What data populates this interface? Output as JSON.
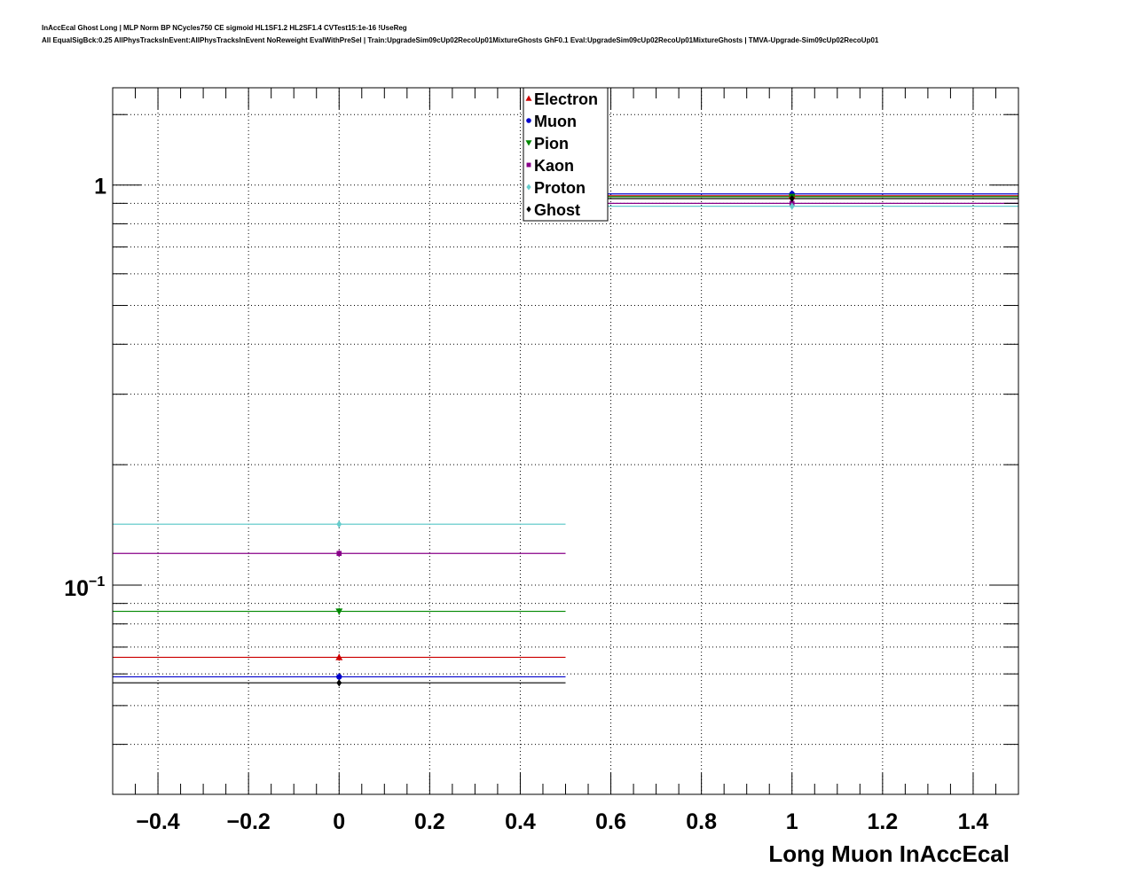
{
  "header": {
    "title": "InAccEcal Ghost Long | MLP Norm BP NCycles750 CE sigmoid HL1SF1.2 HL2SF1.4 CVTest15:1e-16 !UseReg",
    "subtitle": "All EqualSigBck:0.25 AllPhysTracksInEvent:AllPhysTracksInEvent NoReweight EvalWithPreSel | Train:UpgradeSim09cUp02RecoUp01MixtureGhosts GhF0.1 Eval:UpgradeSim09cUp02RecoUp01MixtureGhosts | TMVA-Upgrade-Sim09cUp02RecoUp01"
  },
  "chart_data": {
    "type": "scatter",
    "title": "",
    "xlabel": "Long Muon InAccEcal",
    "ylabel": "",
    "xlim": [
      -0.5,
      1.5
    ],
    "ylim": [
      0.03,
      1.75
    ],
    "yscale": "log",
    "grid": true,
    "legend_position": "top-center",
    "x_ticks": [
      {
        "value": -0.4,
        "label": "−0.4"
      },
      {
        "value": -0.2,
        "label": "−0.2"
      },
      {
        "value": 0,
        "label": "0"
      },
      {
        "value": 0.2,
        "label": "0.2"
      },
      {
        "value": 0.4,
        "label": "0.4"
      },
      {
        "value": 0.6,
        "label": "0.6"
      },
      {
        "value": 0.8,
        "label": "0.8"
      },
      {
        "value": 1,
        "label": "1"
      },
      {
        "value": 1.2,
        "label": "1.2"
      },
      {
        "value": 1.4,
        "label": "1.4"
      }
    ],
    "y_tick_labels": [
      {
        "value": 0.1,
        "base": "10",
        "exp": "−1"
      },
      {
        "value": 1,
        "base": "1",
        "exp": ""
      }
    ],
    "bins": [
      [
        -0.5,
        0.5
      ],
      [
        0.5,
        1.5
      ]
    ],
    "x": [
      0,
      1
    ],
    "series": [
      {
        "name": "Electron",
        "color": "#cc0000",
        "marker": "triangle-up",
        "values": [
          0.066,
          0.94
        ]
      },
      {
        "name": "Muon",
        "color": "#0000cc",
        "marker": "circle",
        "values": [
          0.059,
          0.95
        ]
      },
      {
        "name": "Pion",
        "color": "#008800",
        "marker": "triangle-down",
        "values": [
          0.086,
          0.935
        ]
      },
      {
        "name": "Kaon",
        "color": "#880088",
        "marker": "square",
        "values": [
          0.12,
          0.9
        ]
      },
      {
        "name": "Proton",
        "color": "#66cccc",
        "marker": "diamond",
        "values": [
          0.142,
          0.885
        ]
      },
      {
        "name": "Ghost",
        "color": "#000000",
        "marker": "diamond",
        "values": [
          0.057,
          0.925
        ]
      }
    ]
  }
}
